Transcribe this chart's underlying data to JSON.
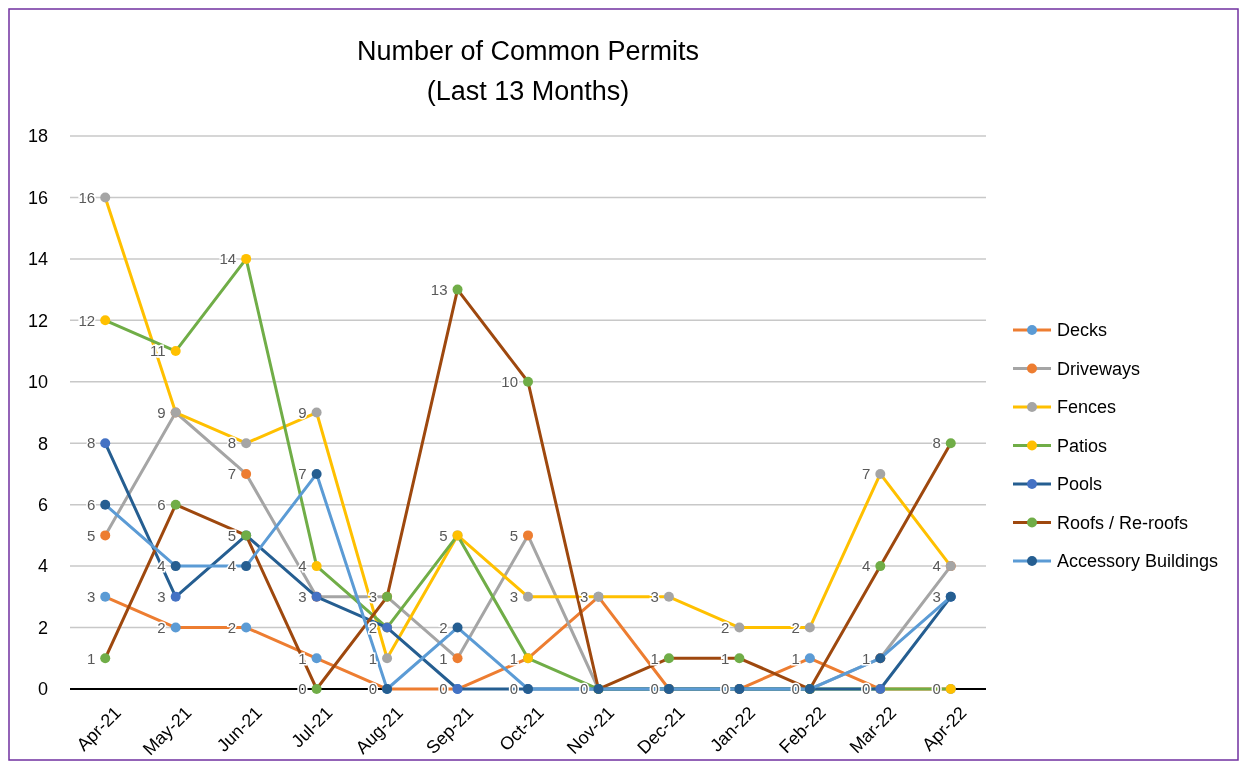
{
  "chart_data": {
    "type": "line",
    "title": "Number of Common Permits",
    "subtitle": "(Last 13 Months)",
    "categories": [
      "Apr-21",
      "May-21",
      "Jun-21",
      "Jul-21",
      "Aug-21",
      "Sep-21",
      "Oct-21",
      "Nov-21",
      "Dec-21",
      "Jan-22",
      "Feb-22",
      "Mar-22",
      "Apr-22"
    ],
    "ylim": [
      0,
      18
    ],
    "yticks": [
      0,
      2,
      4,
      6,
      8,
      10,
      12,
      14,
      16,
      18
    ],
    "grid": "y",
    "legend": "right",
    "marker": "circle",
    "line_style": "solid",
    "series": [
      {
        "name": "Decks",
        "color": "#ed7d31",
        "colors": [
          "#5b9bd5",
          "#5b9bd5",
          "#5b9bd5",
          "#5b9bd5",
          "#5b9bd5",
          "#5b9bd5",
          "#5b9bd5",
          "#5b9bd5",
          "#5b9bd5",
          "#5b9bd5",
          "#5b9bd5",
          "#5b9bd5",
          "#5b9bd5"
        ],
        "values": [
          3,
          2,
          2,
          1,
          0,
          0,
          1,
          3,
          0,
          0,
          1,
          0,
          0
        ],
        "value_labels": [
          "3",
          "2",
          "2",
          "1",
          "0",
          "0",
          "1",
          "3",
          "0",
          "0",
          "1",
          "0",
          "0"
        ]
      },
      {
        "name": "Driveways",
        "color": "#a5a5a5",
        "colors": [
          "#ed7d31",
          "#ed7d31",
          "#ed7d31",
          "#ed7d31",
          "#ed7d31",
          "#ed7d31",
          "#ed7d31",
          "#ed7d31",
          "#ed7d31",
          "#ed7d31",
          "#ed7d31",
          "#ed7d31",
          "#ed7d31"
        ],
        "values": [
          5,
          9,
          7,
          3,
          3,
          1,
          5,
          0,
          0,
          0,
          0,
          1,
          4
        ],
        "value_labels": [
          "5",
          "9",
          "7",
          "3",
          "3",
          "1",
          "5",
          "0",
          null,
          null,
          "0",
          "1",
          "4"
        ]
      },
      {
        "name": "Fences",
        "color": "#ffc000",
        "colors": [
          "#a5a5a5",
          "#a5a5a5",
          "#a5a5a5",
          "#a5a5a5",
          "#a5a5a5",
          "#a5a5a5",
          "#a5a5a5",
          "#a5a5a5",
          "#a5a5a5",
          "#a5a5a5",
          "#a5a5a5",
          "#a5a5a5",
          "#a5a5a5"
        ],
        "values": [
          16,
          9,
          8,
          9,
          1,
          5,
          3,
          3,
          3,
          2,
          2,
          7,
          4
        ],
        "value_labels": [
          "16",
          null,
          "8",
          "9",
          "1",
          "5",
          "3",
          null,
          "3",
          "2",
          "2",
          "7",
          null
        ]
      },
      {
        "name": "Patios",
        "color": "#70ad47",
        "colors": [
          "#ffc000",
          "#ffc000",
          "#ffc000",
          "#ffc000",
          "#ffc000",
          "#ffc000",
          "#ffc000",
          "#ffc000",
          "#ffc000",
          "#ffc000",
          "#ffc000",
          "#ffc000",
          "#ffc000"
        ],
        "values": [
          12,
          11,
          14,
          4,
          2,
          5,
          1,
          0,
          0,
          0,
          0,
          0,
          0
        ],
        "value_labels": [
          "12",
          "11",
          "14",
          "4",
          "2",
          null,
          null,
          null,
          null,
          null,
          null,
          null,
          null
        ]
      },
      {
        "name": "Pools",
        "color": "#255e91",
        "colors": [
          "#4472c4",
          "#4472c4",
          "#4472c4",
          "#4472c4",
          "#4472c4",
          "#4472c4",
          "#4472c4",
          "#4472c4",
          "#4472c4",
          "#4472c4",
          "#4472c4",
          "#4472c4",
          "#4472c4"
        ],
        "values": [
          8,
          3,
          5,
          3,
          2,
          0,
          0,
          0,
          0,
          0,
          0,
          0,
          3
        ],
        "value_labels": [
          "8",
          "3",
          "5",
          null,
          null,
          null,
          "0",
          null,
          null,
          null,
          null,
          null,
          "3"
        ]
      },
      {
        "name": "Roofs / Re-roofs",
        "color": "#9e480e",
        "colors": [
          "#70ad47",
          "#70ad47",
          "#70ad47",
          "#70ad47",
          "#70ad47",
          "#70ad47",
          "#70ad47",
          "#70ad47",
          "#70ad47",
          "#70ad47",
          "#70ad47",
          "#70ad47",
          "#70ad47"
        ],
        "values": [
          1,
          6,
          5,
          0,
          3,
          13,
          10,
          0,
          1,
          1,
          0,
          4,
          8
        ],
        "value_labels": [
          "1",
          "6",
          null,
          "0",
          null,
          "13",
          "10",
          null,
          "1",
          "1",
          null,
          "4",
          "8"
        ]
      },
      {
        "name": "Accessory Buildings",
        "color": "#5b9bd5",
        "colors": [
          "#255e91",
          "#255e91",
          "#255e91",
          "#255e91",
          "#255e91",
          "#255e91",
          "#255e91",
          "#255e91",
          "#255e91",
          "#255e91",
          "#255e91",
          "#255e91",
          "#255e91"
        ],
        "values": [
          6,
          4,
          4,
          7,
          0,
          2,
          0,
          0,
          0,
          0,
          0,
          1,
          3
        ],
        "value_labels": [
          "6",
          "4",
          "4",
          "7",
          null,
          "2",
          null,
          null,
          null,
          null,
          null,
          null,
          null
        ]
      }
    ]
  }
}
